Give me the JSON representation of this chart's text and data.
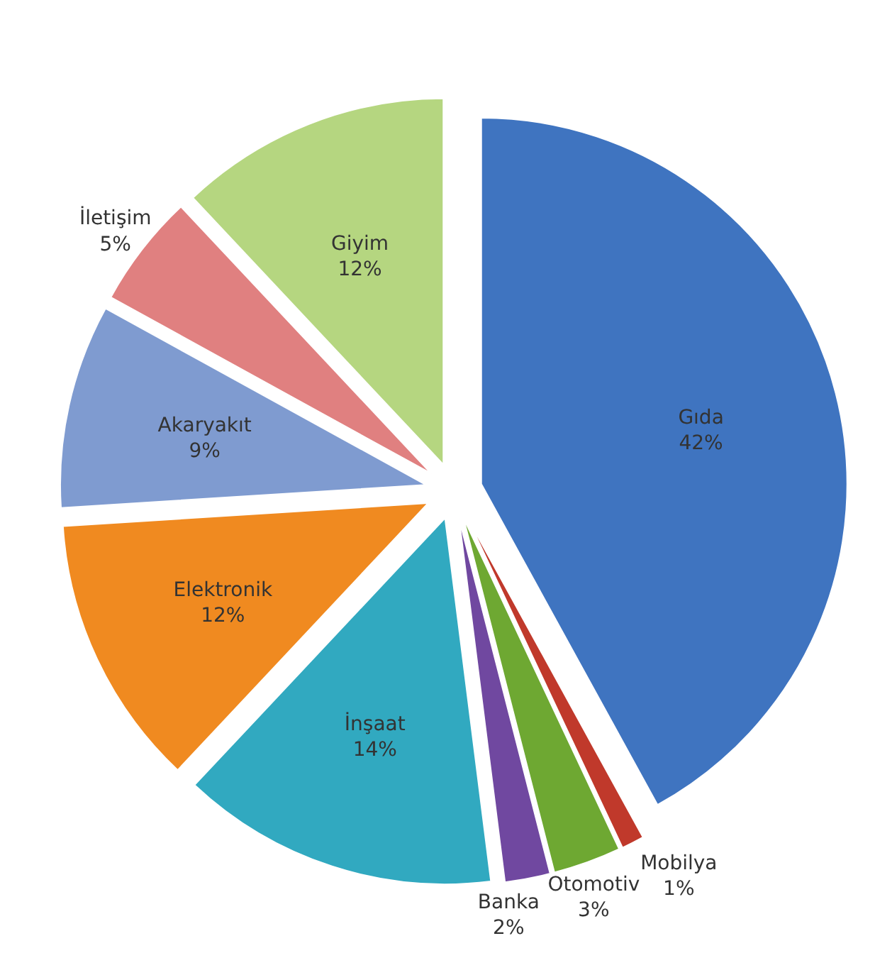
{
  "chart_data": {
    "type": "pie",
    "categories": [
      "Gıda",
      "Mobilya",
      "Otomotiv",
      "Banka",
      "İnşaat",
      "Elektronik",
      "Akaryakıt",
      "İletişim",
      "Giyim"
    ],
    "values": [
      42,
      1,
      3,
      2,
      14,
      12,
      9,
      5,
      12
    ],
    "value_labels": [
      "42%",
      "1%",
      "3%",
      "2%",
      "14%",
      "12%",
      "9%",
      "5%",
      "12%"
    ],
    "colors": [
      "#3f74c0",
      "#c0392b",
      "#6ea832",
      "#7048a0",
      "#31a9c0",
      "#f08a20",
      "#7f9bd0",
      "#e08080",
      "#b5d680"
    ]
  }
}
